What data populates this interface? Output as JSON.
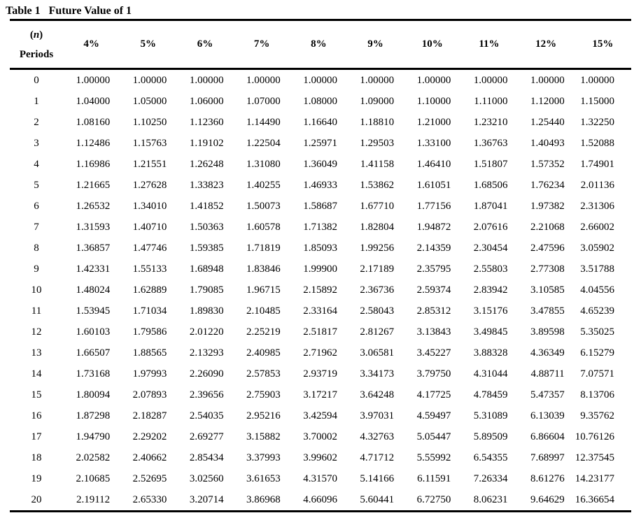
{
  "title": {
    "prefix": "Table 1",
    "text": "Future Value of 1"
  },
  "table": {
    "period_header": {
      "paren_open": "(",
      "symbol": "n",
      "paren_close": ")",
      "label": "Periods"
    },
    "columns": [
      "4%",
      "5%",
      "6%",
      "7%",
      "8%",
      "9%",
      "10%",
      "11%",
      "12%",
      "15%"
    ],
    "rows": [
      {
        "period": "0",
        "values": [
          "1.00000",
          "1.00000",
          "1.00000",
          "1.00000",
          "1.00000",
          "1.00000",
          "1.00000",
          "1.00000",
          "1.00000",
          "1.00000"
        ]
      },
      {
        "period": "1",
        "values": [
          "1.04000",
          "1.05000",
          "1.06000",
          "1.07000",
          "1.08000",
          "1.09000",
          "1.10000",
          "1.11000",
          "1.12000",
          "1.15000"
        ]
      },
      {
        "period": "2",
        "values": [
          "1.08160",
          "1.10250",
          "1.12360",
          "1.14490",
          "1.16640",
          "1.18810",
          "1.21000",
          "1.23210",
          "1.25440",
          "1.32250"
        ]
      },
      {
        "period": "3",
        "values": [
          "1.12486",
          "1.15763",
          "1.19102",
          "1.22504",
          "1.25971",
          "1.29503",
          "1.33100",
          "1.36763",
          "1.40493",
          "1.52088"
        ]
      },
      {
        "period": "4",
        "values": [
          "1.16986",
          "1.21551",
          "1.26248",
          "1.31080",
          "1.36049",
          "1.41158",
          "1.46410",
          "1.51807",
          "1.57352",
          "1.74901"
        ]
      },
      {
        "period": "5",
        "values": [
          "1.21665",
          "1.27628",
          "1.33823",
          "1.40255",
          "1.46933",
          "1.53862",
          "1.61051",
          "1.68506",
          "1.76234",
          "2.01136"
        ]
      },
      {
        "period": "6",
        "values": [
          "1.26532",
          "1.34010",
          "1.41852",
          "1.50073",
          "1.58687",
          "1.67710",
          "1.77156",
          "1.87041",
          "1.97382",
          "2.31306"
        ]
      },
      {
        "period": "7",
        "values": [
          "1.31593",
          "1.40710",
          "1.50363",
          "1.60578",
          "1.71382",
          "1.82804",
          "1.94872",
          "2.07616",
          "2.21068",
          "2.66002"
        ]
      },
      {
        "period": "8",
        "values": [
          "1.36857",
          "1.47746",
          "1.59385",
          "1.71819",
          "1.85093",
          "1.99256",
          "2.14359",
          "2.30454",
          "2.47596",
          "3.05902"
        ]
      },
      {
        "period": "9",
        "values": [
          "1.42331",
          "1.55133",
          "1.68948",
          "1.83846",
          "1.99900",
          "2.17189",
          "2.35795",
          "2.55803",
          "2.77308",
          "3.51788"
        ]
      },
      {
        "period": "10",
        "values": [
          "1.48024",
          "1.62889",
          "1.79085",
          "1.96715",
          "2.15892",
          "2.36736",
          "2.59374",
          "2.83942",
          "3.10585",
          "4.04556"
        ]
      },
      {
        "period": "11",
        "values": [
          "1.53945",
          "1.71034",
          "1.89830",
          "2.10485",
          "2.33164",
          "2.58043",
          "2.85312",
          "3.15176",
          "3.47855",
          "4.65239"
        ]
      },
      {
        "period": "12",
        "values": [
          "1.60103",
          "1.79586",
          "2.01220",
          "2.25219",
          "2.51817",
          "2.81267",
          "3.13843",
          "3.49845",
          "3.89598",
          "5.35025"
        ]
      },
      {
        "period": "13",
        "values": [
          "1.66507",
          "1.88565",
          "2.13293",
          "2.40985",
          "2.71962",
          "3.06581",
          "3.45227",
          "3.88328",
          "4.36349",
          "6.15279"
        ]
      },
      {
        "period": "14",
        "values": [
          "1.73168",
          "1.97993",
          "2.26090",
          "2.57853",
          "2.93719",
          "3.34173",
          "3.79750",
          "4.31044",
          "4.88711",
          "7.07571"
        ]
      },
      {
        "period": "15",
        "values": [
          "1.80094",
          "2.07893",
          "2.39656",
          "2.75903",
          "3.17217",
          "3.64248",
          "4.17725",
          "4.78459",
          "5.47357",
          "8.13706"
        ]
      },
      {
        "period": "16",
        "values": [
          "1.87298",
          "2.18287",
          "2.54035",
          "2.95216",
          "3.42594",
          "3.97031",
          "4.59497",
          "5.31089",
          "6.13039",
          "9.35762"
        ]
      },
      {
        "period": "17",
        "values": [
          "1.94790",
          "2.29202",
          "2.69277",
          "3.15882",
          "3.70002",
          "4.32763",
          "5.05447",
          "5.89509",
          "6.86604",
          "10.76126"
        ]
      },
      {
        "period": "18",
        "values": [
          "2.02582",
          "2.40662",
          "2.85434",
          "3.37993",
          "3.99602",
          "4.71712",
          "5.55992",
          "6.54355",
          "7.68997",
          "12.37545"
        ]
      },
      {
        "period": "19",
        "values": [
          "2.10685",
          "2.52695",
          "3.02560",
          "3.61653",
          "4.31570",
          "5.14166",
          "6.11591",
          "7.26334",
          "8.61276",
          "14.23177"
        ]
      },
      {
        "period": "20",
        "values": [
          "2.19112",
          "2.65330",
          "3.20714",
          "3.86968",
          "4.66096",
          "5.60441",
          "6.72750",
          "8.06231",
          "9.64629",
          "16.36654"
        ]
      }
    ]
  }
}
